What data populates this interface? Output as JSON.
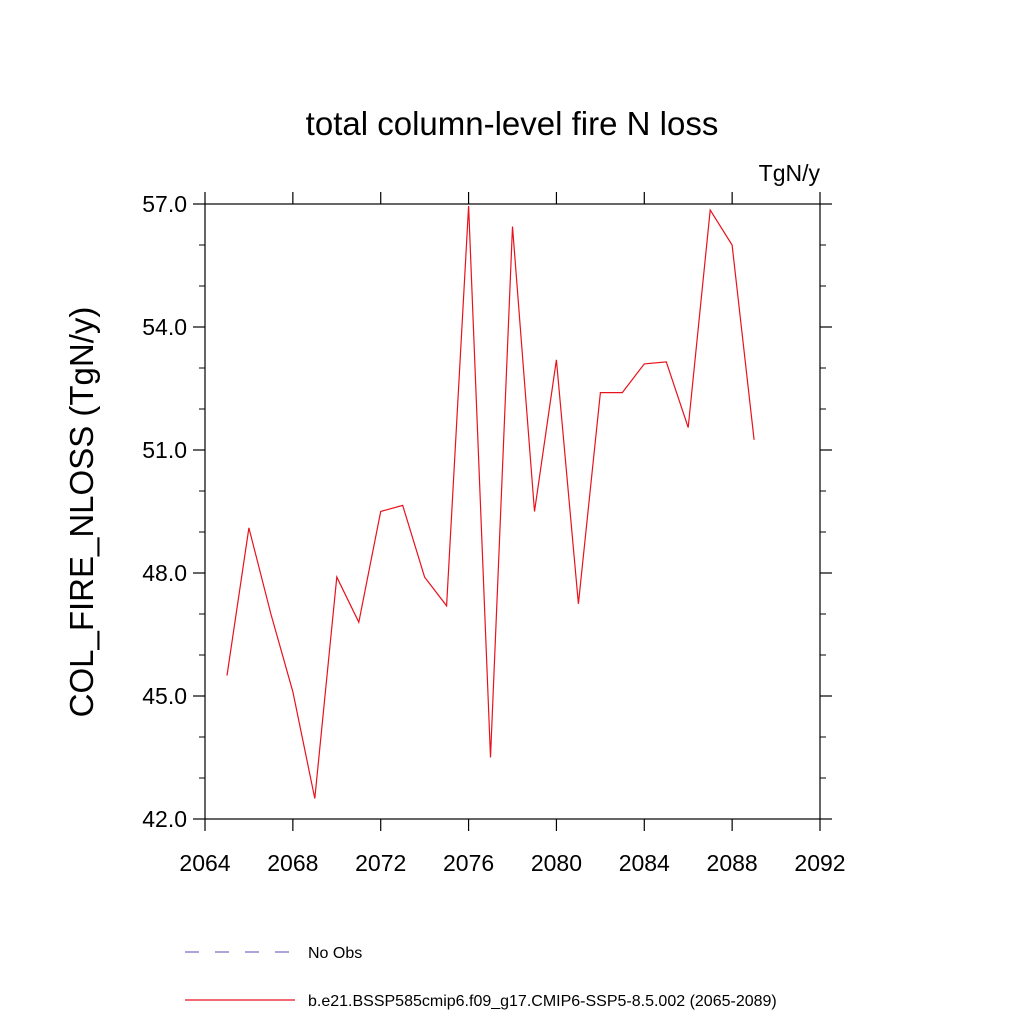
{
  "chart_data": {
    "type": "line",
    "title": "total column-level fire N loss",
    "units_label": "TgN/y",
    "ylabel": "COL_FIRE_NLOSS  (TgN/y)",
    "xlabel": "",
    "xlim": [
      2064,
      2092
    ],
    "ylim": [
      42.0,
      57.0
    ],
    "x_ticks": [
      2064,
      2068,
      2072,
      2076,
      2080,
      2084,
      2088,
      2092
    ],
    "x_tick_labels": [
      "2064",
      "2068",
      "2072",
      "2076",
      "2080",
      "2084",
      "2088",
      "2092"
    ],
    "y_ticks": [
      42.0,
      45.0,
      48.0,
      51.0,
      54.0,
      57.0
    ],
    "y_tick_labels": [
      "42.0",
      "45.0",
      "48.0",
      "51.0",
      "54.0",
      "57.0"
    ],
    "grid": false,
    "legend_placement": "bottom",
    "series": [
      {
        "name": "b.e21.BSSP585cmip6.f09_g17.CMIP6-SSP5-8.5.002 (2065-2089)",
        "color": "#e8121c",
        "dash": "solid",
        "x": [
          2065,
          2066,
          2067,
          2068,
          2069,
          2070,
          2071,
          2072,
          2073,
          2074,
          2075,
          2076,
          2077,
          2078,
          2079,
          2080,
          2081,
          2082,
          2083,
          2084,
          2085,
          2086,
          2087,
          2088,
          2089
        ],
        "y": [
          45.5,
          49.1,
          47.0,
          45.1,
          42.5,
          47.9,
          46.8,
          49.5,
          49.65,
          47.9,
          47.2,
          56.95,
          43.5,
          56.45,
          49.5,
          53.2,
          47.25,
          52.4,
          52.4,
          53.1,
          53.15,
          51.55,
          56.85,
          56.0,
          51.25
        ]
      },
      {
        "name": "No Obs",
        "color": "#7a6fc8",
        "dash": "dashed",
        "x": [],
        "y": []
      }
    ]
  }
}
